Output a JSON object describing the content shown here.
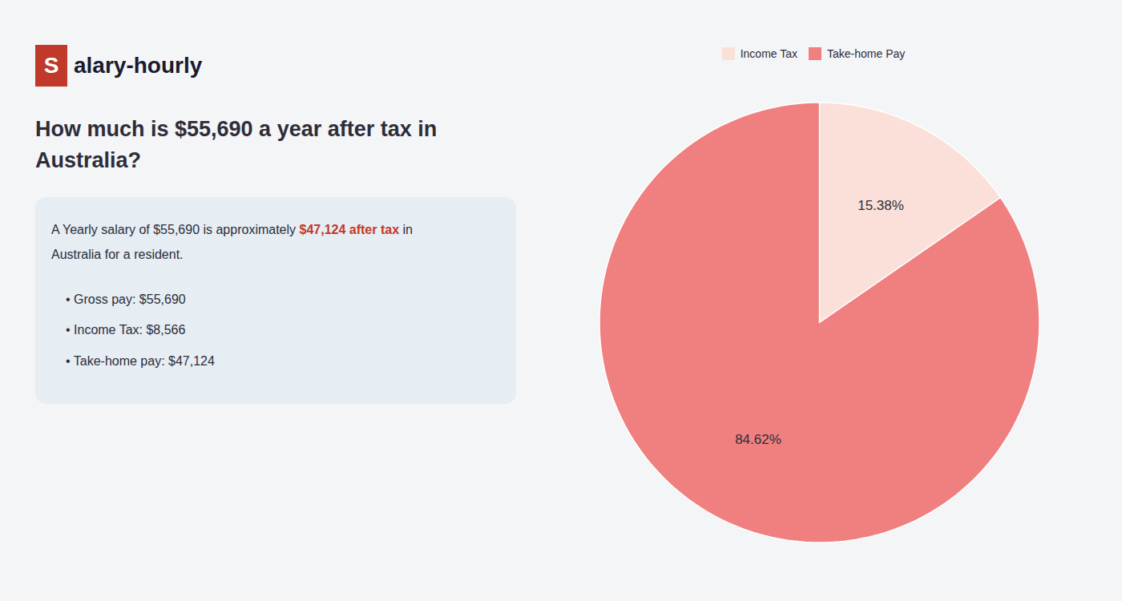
{
  "chart_data": {
    "type": "pie",
    "title": "How much is $55,690 a year after tax in\nAustralia?",
    "categories": [
      "Income Tax",
      "Take-home Pay"
    ],
    "values": [
      15.38,
      84.62
    ],
    "value_labels": [
      "15.38%",
      "84.62%"
    ],
    "colors": [
      "#fae0d8",
      "#f08080"
    ],
    "data_labels": true,
    "legend": "top",
    "annotations": [
      {
        "text": "S",
        "color": "#c0392b"
      },
      {
        "text": "alary-hourly"
      },
      {
        "text": "A Yearly salary of $55,690 is approximately "
      },
      {
        "text": "$47,124 after tax",
        "color": "#c0392b"
      },
      {
        "text": " in"
      },
      {
        "text": "Australia for a resident."
      },
      {
        "text": "• Gross pay: $55,690"
      },
      {
        "text": "• Income Tax: $8,566"
      },
      {
        "text": "• Take-home pay: $47,124"
      }
    ]
  }
}
